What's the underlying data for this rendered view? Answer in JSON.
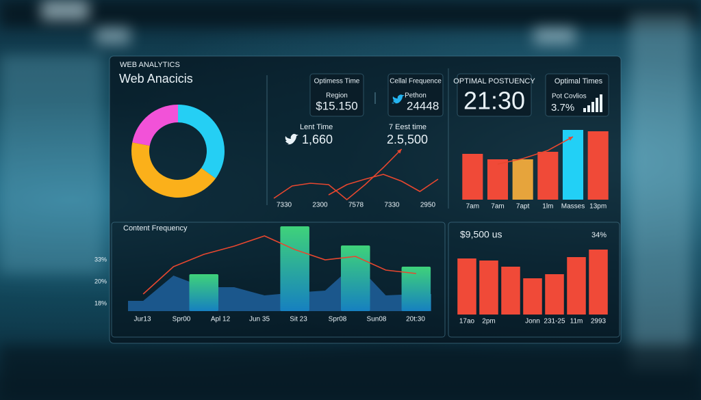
{
  "header": {
    "kicker": "WEB ANALYTICS",
    "title": "Web Anacicis"
  },
  "donut": {
    "series": [
      {
        "value": 35,
        "color": "#25cff4"
      },
      {
        "value": 43,
        "color": "#fbb01a"
      },
      {
        "value": 22,
        "color": "#f252d8"
      }
    ]
  },
  "stats": [
    {
      "label": "Optimess Time",
      "sublabel": "Region",
      "value": "$15.150"
    },
    {
      "label": "Cellal Frequence",
      "sublabel": "Pethon",
      "value": "24448"
    },
    {
      "label": "OPTIMAL POSTUENCY",
      "value": "21:30"
    },
    {
      "label": "Optimal Times",
      "sublabel": "Pot Covlios",
      "value": "3.7%"
    }
  ],
  "highlights": [
    {
      "label": "Lent Time",
      "value": "1,660"
    },
    {
      "label": "7 Eest time",
      "value": "2.5,500"
    }
  ],
  "line_chart": {
    "x_labels": [
      "7330",
      "2300",
      "7578",
      "7330",
      "2950"
    ],
    "series": [
      {
        "color": "#e8472f",
        "values": [
          10,
          28,
          32,
          30,
          8,
          30,
          55,
          82,
          null,
          null
        ]
      },
      {
        "color": "#e8472f",
        "values": [
          null,
          null,
          null,
          15,
          30,
          38,
          45,
          35,
          20,
          38
        ]
      }
    ]
  },
  "bar_chart_top": {
    "categories": [
      "7am",
      "7am",
      "7apt",
      "1lm",
      "Masses",
      "13pm"
    ],
    "values": [
      67,
      59,
      59,
      70,
      102,
      100
    ],
    "colors": [
      "#f04a38",
      "#f04a38",
      "#e6a43c",
      "#f04a38",
      "#22d0f6",
      "#f04a38"
    ],
    "line": {
      "color": "#e8472f",
      "values": [
        null,
        52,
        60,
        72,
        92,
        null
      ]
    }
  },
  "content_chart": {
    "title": "Content Frequency",
    "y_labels": [
      "33%",
      "20%",
      "18%"
    ],
    "x_labels": [
      "Jur13",
      "Spr00",
      "Apl 12",
      "Jun 35",
      "Sit 23",
      "Spr08",
      "Sun08",
      "20t:30"
    ],
    "area": [
      15,
      52,
      35,
      35,
      23,
      27,
      30,
      70,
      23,
      25
    ],
    "bars": [
      null,
      null,
      54,
      null,
      null,
      124,
      null,
      96,
      null,
      65
    ],
    "line": {
      "color": "#e8472f",
      "values": [
        25,
        65,
        83,
        95,
        110,
        90,
        75,
        80,
        60,
        55
      ]
    }
  },
  "bar_chart_bottom": {
    "title": "$9,500 us",
    "badge": "34%",
    "categories": [
      "17ao",
      "2pm",
      null,
      "Jonn",
      "231-25",
      "11m",
      "2993"
    ],
    "values": [
      82,
      79,
      70,
      53,
      59,
      84,
      95
    ],
    "color": "#f04a38"
  }
}
